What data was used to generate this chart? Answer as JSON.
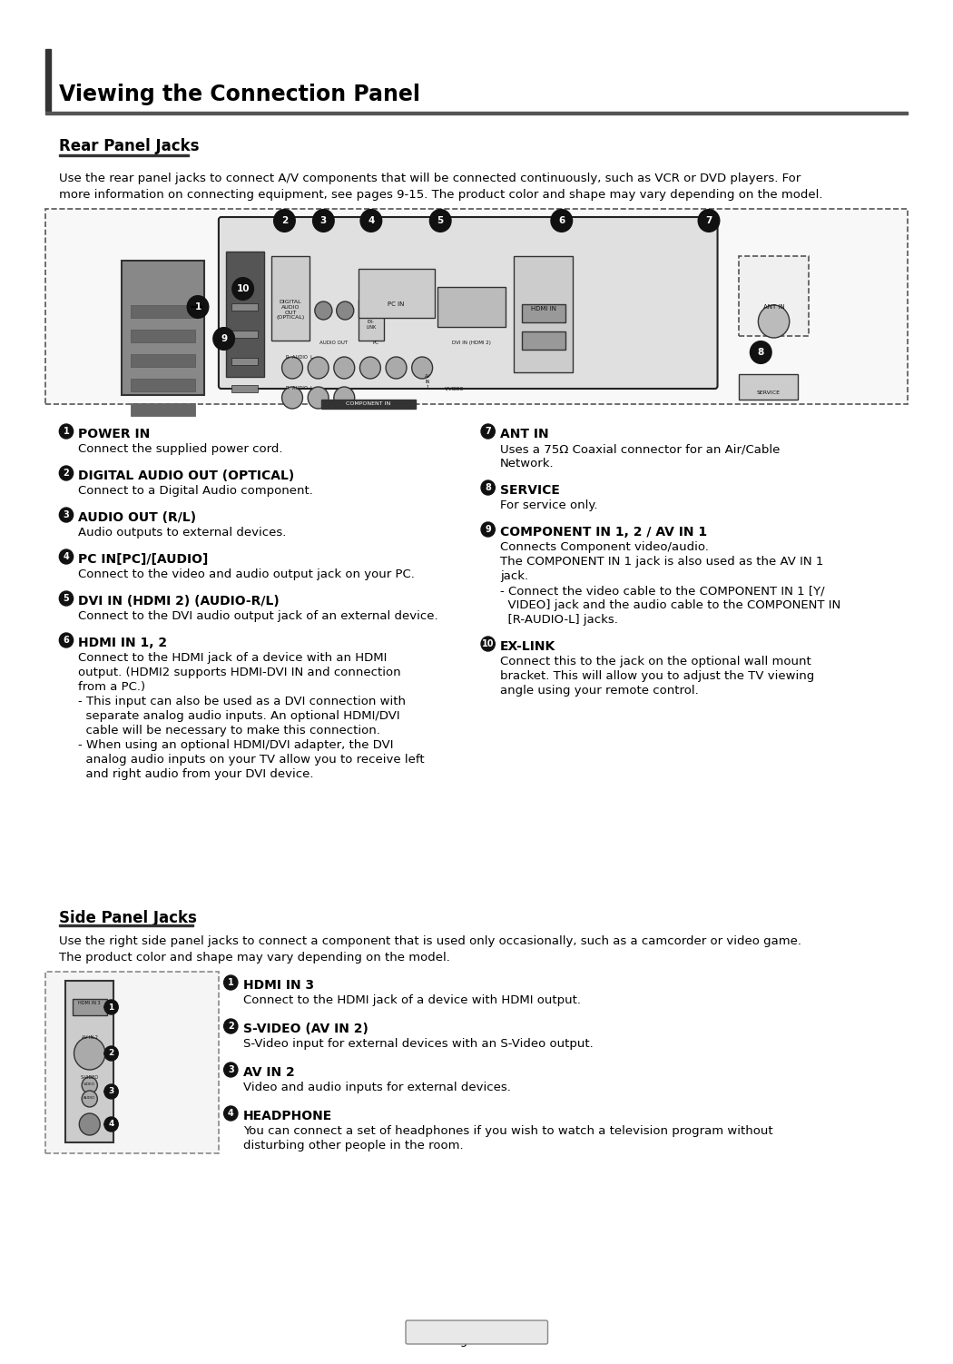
{
  "page_title": "Viewing the Connection Panel",
  "section1_title": "Rear Panel Jacks",
  "section1_desc": "Use the rear panel jacks to connect A/V components that will be connected continuously, such as VCR or DVD players. For\nmore information on connecting equipment, see pages 9-15. The product color and shape may vary depending on the model.",
  "rear_items": [
    {
      "num": "1",
      "title": "POWER IN",
      "desc": "Connect the supplied power cord."
    },
    {
      "num": "2",
      "title": "DIGITAL AUDIO OUT (OPTICAL)",
      "desc": "Connect to a Digital Audio component."
    },
    {
      "num": "3",
      "title": "AUDIO OUT (R/L)",
      "desc": "Audio outputs to external devices."
    },
    {
      "num": "4",
      "title": "PC IN[PC]/[AUDIO]",
      "desc": "Connect to the video and audio output jack on your PC."
    },
    {
      "num": "5",
      "title": "DVI IN (HDMI 2) (AUDIO-R/L)",
      "desc": "Connect to the DVI audio output jack of an external device."
    },
    {
      "num": "6",
      "title": "HDMI IN 1, 2",
      "desc": "Connect to the HDMI jack of a device with an HDMI\noutput. (HDMI2 supports HDMI-DVI IN and connection\nfrom a PC.)\n- This input can also be used as a DVI connection with\n  separate analog audio inputs. An optional HDMI/DVI\n  cable will be necessary to make this connection.\n- When using an optional HDMI/DVI adapter, the DVI\n  analog audio inputs on your TV allow you to receive left\n  and right audio from your DVI device."
    }
  ],
  "rear_items_right": [
    {
      "num": "7",
      "title": "ANT IN",
      "desc": "Uses a 75Ω Coaxial connector for an Air/Cable\nNetwork."
    },
    {
      "num": "8",
      "title": "SERVICE",
      "desc": "For service only."
    },
    {
      "num": "9",
      "title": "COMPONENT IN 1, 2 / AV IN 1",
      "desc": "Connects Component video/audio.\nThe COMPONENT IN 1 jack is also used as the AV IN 1\njack.\n- Connect the video cable to the COMPONENT IN 1 [Y/\n  VIDEO] jack and the audio cable to the COMPONENT IN\n  [R-AUDIO-L] jacks."
    },
    {
      "num": "10",
      "title": "EX-LINK",
      "desc": "Connect this to the jack on the optional wall mount\nbracket. This will allow you to adjust the TV viewing\nangle using your remote control."
    }
  ],
  "section2_title": "Side Panel Jacks",
  "section2_desc": "Use the right side panel jacks to connect a component that is used only occasionally, such as a camcorder or video game.\nThe product color and shape may vary depending on the model.",
  "side_items": [
    {
      "num": "1",
      "title": "HDMI IN 3",
      "desc": "Connect to the HDMI jack of a device with HDMI output."
    },
    {
      "num": "2",
      "title": "S-VIDEO (AV IN 2)",
      "desc": "S-Video input for external devices with an S-Video output."
    },
    {
      "num": "3",
      "title": "AV IN 2",
      "desc": "Video and audio inputs for external devices."
    },
    {
      "num": "4",
      "title": "HEADPHONE",
      "desc": "You can connect a set of headphones if you wish to watch a television program without\ndisturbing other people in the room."
    }
  ],
  "footer": "English - 7",
  "bg_color": "#ffffff",
  "text_color": "#000000",
  "title_bar_color": "#555555",
  "border_color": "#888888"
}
